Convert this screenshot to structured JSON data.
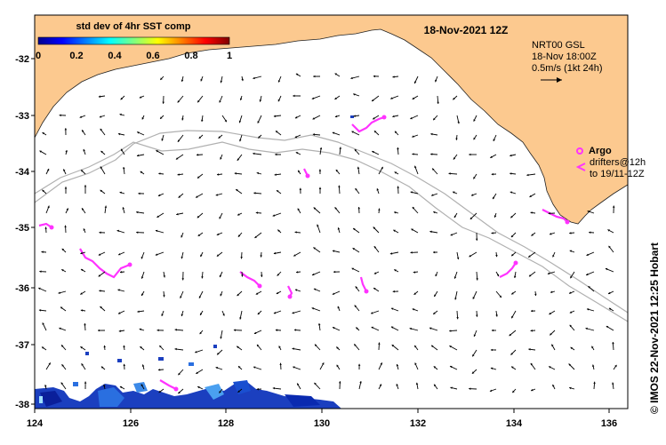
{
  "map": {
    "title": "18-Nov-2021 12Z",
    "colorbar": {
      "title": "std dev of 4hr SST comp",
      "ticks": [
        "0",
        "0.2",
        "0.4",
        "0.6",
        "0.8",
        "1"
      ]
    },
    "legend": {
      "line1": "NRT00 GSL",
      "line2": "18-Nov 18:00Z",
      "line3": "0.5m/s (1kt 24h)"
    },
    "argo": {
      "label": "Argo",
      "line1": "drifters@12h",
      "line2": "to 19/11-12Z"
    },
    "credit": "© IMOS 22-Nov-2021 12:25 Hobart",
    "y_ticks": [
      "-32",
      "-33",
      "-34",
      "-35",
      "-36",
      "-37",
      "-38"
    ],
    "x_ticks": [
      "124",
      "126",
      "128",
      "130",
      "132",
      "134",
      "136"
    ],
    "colors": {
      "land": "#fcc98f",
      "ocean": "#ffffff",
      "argo": "#ff33ff",
      "contour": "#b0b0b0",
      "arrow": "#000000"
    }
  }
}
